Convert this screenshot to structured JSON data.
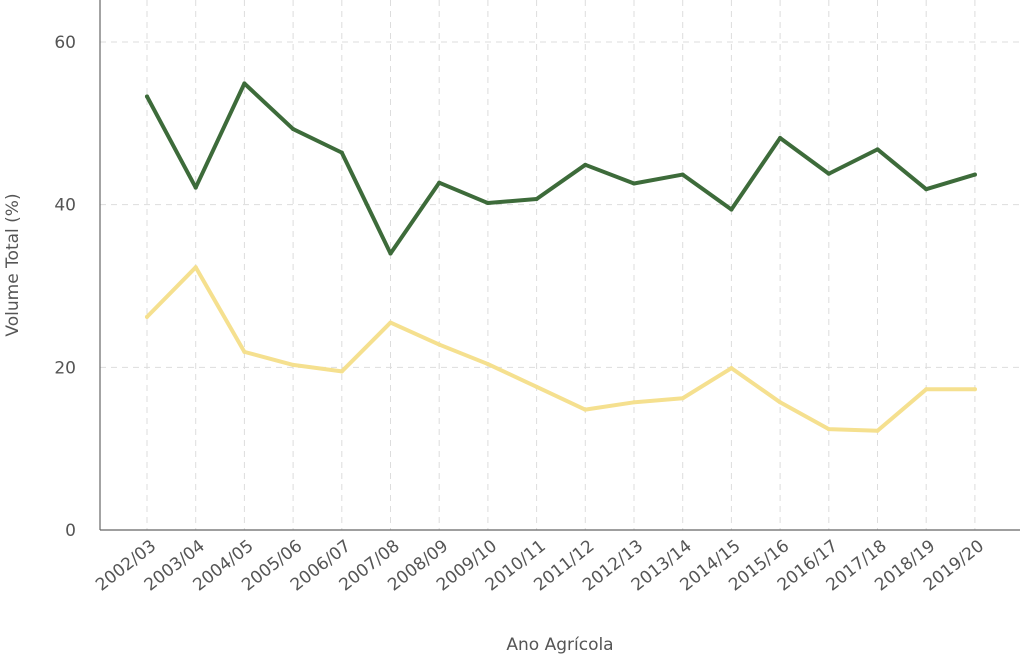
{
  "chart_data": {
    "type": "line",
    "xlabel": "Ano Agrícola",
    "ylabel": "Volume Total (%)",
    "ylim": [
      0,
      60
    ],
    "yticks": [
      "0",
      "20",
      "40",
      "60"
    ],
    "grid": true,
    "categories": [
      "2002/03",
      "2003/04",
      "2004/05",
      "2005/06",
      "2006/07",
      "2007/08",
      "2008/09",
      "2009/10",
      "2010/11",
      "2011/12",
      "2012/13",
      "2013/14",
      "2014/15",
      "2015/16",
      "2016/17",
      "2017/18",
      "2018/19",
      "2019/20"
    ],
    "series": [
      {
        "color": "#3d6b3a",
        "values": [
          53.3,
          42.1,
          54.9,
          49.3,
          46.4,
          34.0,
          42.7,
          40.2,
          40.7,
          44.9,
          42.6,
          43.7,
          39.4,
          48.2,
          43.8,
          46.8,
          41.9,
          43.7
        ]
      },
      {
        "color": "#f5e08f",
        "values": [
          26.2,
          32.3,
          21.9,
          20.3,
          19.5,
          25.5,
          22.8,
          20.4,
          17.6,
          14.8,
          15.7,
          16.2,
          19.9,
          15.7,
          12.4,
          12.2,
          17.3,
          17.3
        ]
      }
    ]
  }
}
